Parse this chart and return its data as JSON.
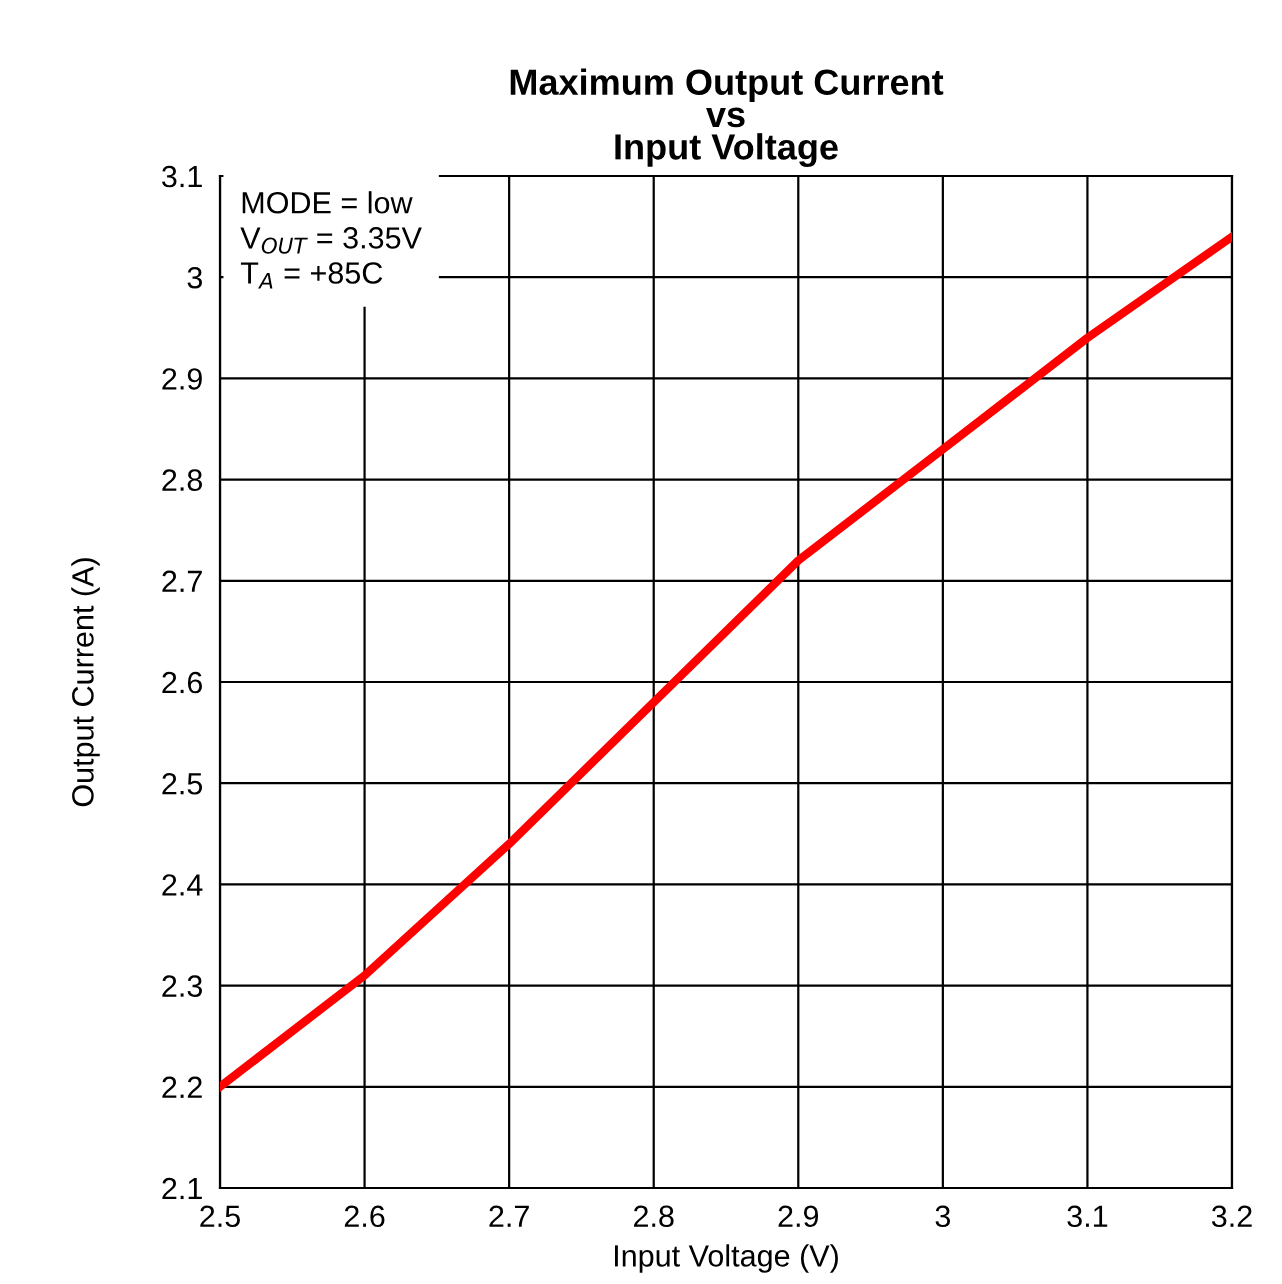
{
  "chart_data": {
    "type": "line",
    "title": "Maximum Output Current\nvs\nInput Voltage",
    "xlabel": "Input Voltage (V)",
    "ylabel": "Output Current (A)",
    "x": [
      2.5,
      2.6,
      2.7,
      2.8,
      2.9,
      3.0,
      3.1,
      3.2
    ],
    "series": [
      {
        "color": "#ff0000",
        "values": [
          2.2,
          2.31,
          2.44,
          2.58,
          2.72,
          2.83,
          2.94,
          3.04
        ]
      }
    ],
    "xlim": [
      2.5,
      3.2
    ],
    "ylim": [
      2.1,
      3.1
    ],
    "xticks": [
      2.5,
      2.6,
      2.7,
      2.8,
      2.9,
      3,
      3.1,
      3.2
    ],
    "yticks": [
      2.1,
      2.2,
      2.3,
      2.4,
      2.5,
      2.6,
      2.7,
      2.8,
      2.9,
      3,
      3.1
    ],
    "grid": true,
    "marker": "none",
    "line_style": "solid",
    "annotations": [
      "MODE = low",
      "V$_{OUT}$ = 3.35V",
      "T$_{A}$ = +85C"
    ]
  }
}
